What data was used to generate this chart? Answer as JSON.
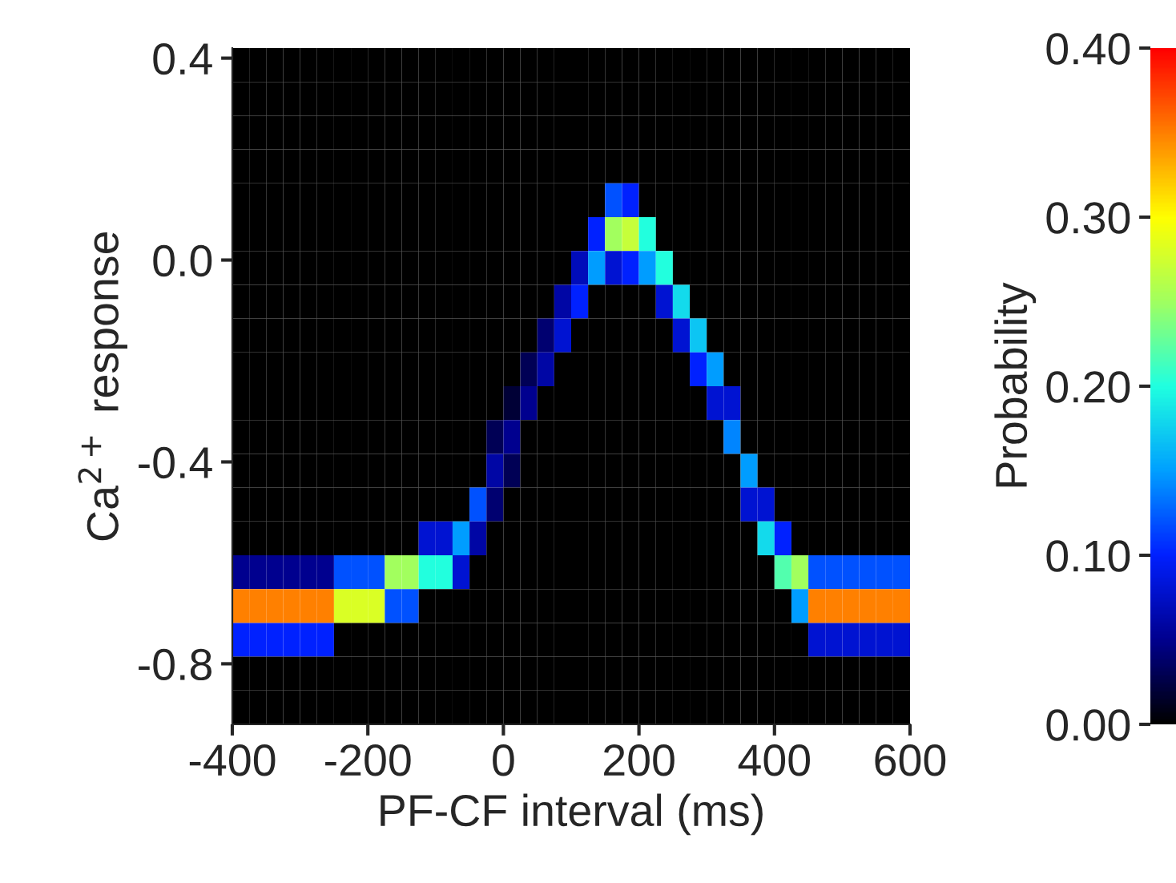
{
  "chart_data": {
    "type": "heatmap",
    "xlabel": "PF-CF interval (ms)",
    "ylabel": "Ca$^{2+}$ response",
    "clabel": "Probability",
    "xlim": [
      -400,
      600
    ],
    "ylim": [
      -0.92,
      0.42
    ],
    "xticks": [
      -400,
      -200,
      0,
      200,
      400,
      600
    ],
    "yticks": [
      {
        "value": 0.4,
        "label": "0.4"
      },
      {
        "value": 0.0,
        "label": "0.0"
      },
      {
        "value": -0.4,
        "label": "-0.4"
      },
      {
        "value": -0.8,
        "label": "-0.8"
      }
    ],
    "clim": [
      0,
      0.4
    ],
    "cticks": [
      {
        "value": 0,
        "label": "0.00"
      },
      {
        "value": 0.1,
        "label": "0.10"
      },
      {
        "value": 0.2,
        "label": "0.20"
      },
      {
        "value": 0.3,
        "label": "0.30"
      },
      {
        "value": 0.4,
        "label": "0.40"
      }
    ],
    "x": [
      -387.5,
      -362.5,
      -337.5,
      -312.5,
      -287.5,
      -262.5,
      -237.5,
      -212.5,
      -187.5,
      -162.5,
      -137.5,
      -112.5,
      -87.5,
      -62.5,
      -37.5,
      -12.5,
      12.5,
      37.5,
      62.5,
      87.5,
      112.5,
      137.5,
      162.5,
      187.5,
      212.5,
      237.5,
      262.5,
      287.5,
      312.5,
      337.5,
      362.5,
      387.5,
      412.5,
      437.5,
      462.5,
      487.5,
      512.5,
      537.5,
      562.5,
      587.5
    ],
    "y": [
      0.3865,
      0.3195,
      0.2525,
      0.1855,
      0.1185,
      0.0515,
      -0.0155,
      -0.0825,
      -0.1495,
      -0.2165,
      -0.2835,
      -0.3505,
      -0.4175,
      -0.4845,
      -0.5515,
      -0.6185,
      -0.6855,
      -0.7525,
      -0.8195,
      -0.8865
    ],
    "cells": [
      [
        0,
        0,
        0,
        0,
        0,
        0,
        0,
        0,
        0,
        0,
        0,
        0,
        0,
        0,
        0,
        0,
        0,
        0,
        0,
        0,
        0,
        0,
        0,
        0,
        0,
        0,
        0,
        0,
        0,
        0,
        0,
        0,
        0,
        0,
        0,
        0,
        0,
        0,
        0,
        0
      ],
      [
        0,
        0,
        0,
        0,
        0,
        0,
        0,
        0,
        0,
        0,
        0,
        0,
        0,
        0,
        0,
        0,
        0,
        0,
        0,
        0,
        0,
        0,
        0,
        0,
        0,
        0,
        0,
        0,
        0,
        0,
        0,
        0,
        0,
        0,
        0,
        0,
        0,
        0,
        0,
        0
      ],
      [
        0,
        0,
        0,
        0,
        0,
        0,
        0,
        0,
        0,
        0,
        0,
        0,
        0,
        0,
        0,
        0,
        0,
        0,
        0,
        0,
        0,
        0,
        0,
        0,
        0,
        0,
        0,
        0,
        0,
        0,
        0,
        0,
        0,
        0,
        0,
        0,
        0,
        0,
        0,
        0
      ],
      [
        0,
        0,
        0,
        0,
        0,
        0,
        0,
        0,
        0,
        0,
        0,
        0,
        0,
        0,
        0,
        0,
        0,
        0,
        0,
        0,
        0,
        0,
        0,
        0,
        0,
        0,
        0,
        0,
        0,
        0,
        0,
        0,
        0,
        0,
        0,
        0,
        0,
        0,
        0,
        0
      ],
      [
        0,
        0,
        0,
        0,
        0,
        0,
        0,
        0,
        0,
        0,
        0,
        0,
        0,
        0,
        0,
        0,
        0,
        0,
        0,
        0,
        0,
        0,
        0.12,
        0.1,
        0,
        0,
        0,
        0,
        0,
        0,
        0,
        0,
        0,
        0,
        0,
        0,
        0,
        0,
        0,
        0
      ],
      [
        0,
        0,
        0,
        0,
        0,
        0,
        0,
        0,
        0,
        0,
        0,
        0,
        0,
        0,
        0,
        0,
        0,
        0,
        0,
        0,
        0,
        0.1,
        0.25,
        0.27,
        0.2,
        0,
        0,
        0,
        0,
        0,
        0,
        0,
        0,
        0,
        0,
        0,
        0,
        0,
        0,
        0
      ],
      [
        0,
        0,
        0,
        0,
        0,
        0,
        0,
        0,
        0,
        0,
        0,
        0,
        0,
        0,
        0,
        0,
        0,
        0,
        0,
        0,
        0.07,
        0.15,
        0.08,
        0.1,
        0.15,
        0.2,
        0,
        0,
        0,
        0,
        0,
        0,
        0,
        0,
        0,
        0,
        0,
        0,
        0,
        0
      ],
      [
        0,
        0,
        0,
        0,
        0,
        0,
        0,
        0,
        0,
        0,
        0,
        0,
        0,
        0,
        0,
        0,
        0,
        0,
        0,
        0.06,
        0.1,
        0,
        0,
        0,
        0,
        0.08,
        0.18,
        0,
        0,
        0,
        0,
        0,
        0,
        0,
        0,
        0,
        0,
        0,
        0,
        0
      ],
      [
        0,
        0,
        0,
        0,
        0,
        0,
        0,
        0,
        0,
        0,
        0,
        0,
        0,
        0,
        0,
        0,
        0,
        0,
        0.04,
        0.08,
        0,
        0,
        0,
        0,
        0,
        0,
        0.08,
        0.17,
        0,
        0,
        0,
        0,
        0,
        0,
        0,
        0,
        0,
        0,
        0,
        0
      ],
      [
        0,
        0,
        0,
        0,
        0,
        0,
        0,
        0,
        0,
        0,
        0,
        0,
        0,
        0,
        0,
        0,
        0,
        0.03,
        0.06,
        0,
        0,
        0,
        0,
        0,
        0,
        0,
        0,
        0.1,
        0.15,
        0,
        0,
        0,
        0,
        0,
        0,
        0,
        0,
        0,
        0,
        0
      ],
      [
        0,
        0,
        0,
        0,
        0,
        0,
        0,
        0,
        0,
        0,
        0,
        0,
        0,
        0,
        0,
        0,
        0.02,
        0.05,
        0,
        0,
        0,
        0,
        0,
        0,
        0,
        0,
        0,
        0,
        0.08,
        0.08,
        0,
        0,
        0,
        0,
        0,
        0,
        0,
        0,
        0,
        0
      ],
      [
        0,
        0,
        0,
        0,
        0,
        0,
        0,
        0,
        0,
        0,
        0,
        0,
        0,
        0,
        0,
        0.03,
        0.05,
        0,
        0,
        0,
        0,
        0,
        0,
        0,
        0,
        0,
        0,
        0,
        0,
        0.14,
        0,
        0,
        0,
        0,
        0,
        0,
        0,
        0,
        0,
        0
      ],
      [
        0,
        0,
        0,
        0,
        0,
        0,
        0,
        0,
        0,
        0,
        0,
        0,
        0,
        0,
        0,
        0.06,
        0.03,
        0,
        0,
        0,
        0,
        0,
        0,
        0,
        0,
        0,
        0,
        0,
        0,
        0,
        0.15,
        0,
        0,
        0,
        0,
        0,
        0,
        0,
        0,
        0
      ],
      [
        0,
        0,
        0,
        0,
        0,
        0,
        0,
        0,
        0,
        0,
        0,
        0,
        0,
        0,
        0.12,
        0.04,
        0,
        0,
        0,
        0,
        0,
        0,
        0,
        0,
        0,
        0,
        0,
        0,
        0,
        0,
        0.08,
        0.08,
        0,
        0,
        0,
        0,
        0,
        0,
        0,
        0
      ],
      [
        0,
        0,
        0,
        0,
        0,
        0,
        0,
        0,
        0,
        0,
        0,
        0.08,
        0.08,
        0.15,
        0.06,
        0,
        0,
        0,
        0,
        0,
        0,
        0,
        0,
        0,
        0,
        0,
        0,
        0,
        0,
        0,
        0,
        0.18,
        0.1,
        0,
        0,
        0,
        0,
        0,
        0,
        0
      ],
      [
        0.05,
        0.05,
        0.05,
        0.05,
        0.05,
        0.05,
        0.12,
        0.12,
        0.12,
        0.25,
        0.25,
        0.2,
        0.2,
        0.08,
        0,
        0,
        0,
        0,
        0,
        0,
        0,
        0,
        0,
        0,
        0,
        0,
        0,
        0,
        0,
        0,
        0,
        0,
        0.22,
        0.25,
        0.12,
        0.12,
        0.12,
        0.12,
        0.12,
        0.12
      ],
      [
        0.35,
        0.35,
        0.35,
        0.35,
        0.35,
        0.35,
        0.28,
        0.28,
        0.28,
        0.12,
        0.12,
        0,
        0,
        0,
        0,
        0,
        0,
        0,
        0,
        0,
        0,
        0,
        0,
        0,
        0,
        0,
        0,
        0,
        0,
        0,
        0,
        0,
        0,
        0.15,
        0.35,
        0.35,
        0.35,
        0.35,
        0.35,
        0.35
      ],
      [
        0.1,
        0.1,
        0.1,
        0.1,
        0.1,
        0.1,
        0,
        0,
        0,
        0,
        0,
        0,
        0,
        0,
        0,
        0,
        0,
        0,
        0,
        0,
        0,
        0,
        0,
        0,
        0,
        0,
        0,
        0,
        0,
        0,
        0,
        0,
        0,
        0,
        0.08,
        0.08,
        0.08,
        0.08,
        0.08,
        0.08
      ],
      [
        0,
        0,
        0,
        0,
        0,
        0,
        0,
        0,
        0,
        0,
        0,
        0,
        0,
        0,
        0,
        0,
        0,
        0,
        0,
        0,
        0,
        0,
        0,
        0,
        0,
        0,
        0,
        0,
        0,
        0,
        0,
        0,
        0,
        0,
        0,
        0,
        0,
        0,
        0,
        0
      ],
      [
        0,
        0,
        0,
        0,
        0,
        0,
        0,
        0,
        0,
        0,
        0,
        0,
        0,
        0,
        0,
        0,
        0,
        0,
        0,
        0,
        0,
        0,
        0,
        0,
        0,
        0,
        0,
        0,
        0,
        0,
        0,
        0,
        0,
        0,
        0,
        0,
        0,
        0,
        0,
        0
      ]
    ]
  }
}
